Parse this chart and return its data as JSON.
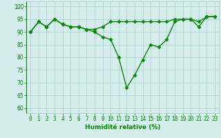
{
  "x": [
    0,
    1,
    2,
    3,
    4,
    5,
    6,
    7,
    8,
    9,
    10,
    11,
    12,
    13,
    14,
    15,
    16,
    17,
    18,
    19,
    20,
    21,
    22,
    23
  ],
  "line1": [
    90,
    94,
    92,
    95,
    93,
    92,
    92,
    91,
    91,
    92,
    94,
    94,
    94,
    94,
    94,
    94,
    94,
    94,
    95,
    95,
    95,
    94,
    96,
    96
  ],
  "line2": [
    90,
    94,
    92,
    95,
    93,
    92,
    92,
    91,
    90,
    88,
    87,
    80,
    68,
    73,
    79,
    85,
    84,
    87,
    94,
    95,
    95,
    92,
    96,
    96
  ],
  "bg_color": "#d5eded",
  "grid_color": "#aacccc",
  "line_color": "#008800",
  "marker": "D",
  "markersize": 2.5,
  "linewidth": 1.0,
  "xlabel": "Humidité relative (%)",
  "xlabel_color": "#008800",
  "xlabel_fontsize": 6.5,
  "ylabel_ticks": [
    60,
    65,
    70,
    75,
    80,
    85,
    90,
    95,
    100
  ],
  "xlim": [
    -0.5,
    23.5
  ],
  "ylim": [
    58,
    102
  ],
  "tick_fontsize": 5.5
}
